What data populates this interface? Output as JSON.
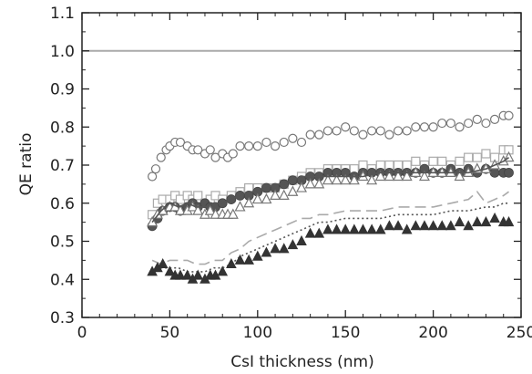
{
  "chart_data": {
    "type": "scatter",
    "xlabel": "CsI thickness (nm)",
    "ylabel": "QE ratio",
    "xlim": [
      0,
      250
    ],
    "ylim": [
      0.3,
      1.1
    ],
    "x_ticks": [
      0,
      50,
      100,
      150,
      200,
      250
    ],
    "y_ticks": [
      0.3,
      0.4,
      0.5,
      0.6,
      0.7,
      0.8,
      0.9,
      1.0,
      1.1
    ],
    "x_tick_labels": [
      "0",
      "50",
      "100",
      "150",
      "200",
      "250"
    ],
    "y_tick_labels": [
      "0.3",
      "0.4",
      "0.5",
      "0.6",
      "0.7",
      "0.8",
      "0.9",
      "1.0",
      "1.1"
    ],
    "reference_line": {
      "y": 1.0,
      "color": "#aaaaaa"
    },
    "grid": false,
    "series": [
      {
        "marker": "open-circle",
        "color": "#777777",
        "x": [
          40,
          42,
          45,
          48,
          50,
          53,
          56,
          60,
          63,
          66,
          70,
          73,
          76,
          80,
          83,
          86,
          90,
          95,
          100,
          105,
          110,
          115,
          120,
          125,
          130,
          135,
          140,
          145,
          150,
          155,
          160,
          165,
          170,
          175,
          180,
          185,
          190,
          195,
          200,
          205,
          210,
          215,
          220,
          225,
          230,
          235,
          240,
          243
        ],
        "y": [
          0.67,
          0.69,
          0.72,
          0.74,
          0.75,
          0.76,
          0.76,
          0.75,
          0.74,
          0.74,
          0.73,
          0.74,
          0.72,
          0.73,
          0.72,
          0.73,
          0.75,
          0.75,
          0.75,
          0.76,
          0.75,
          0.76,
          0.77,
          0.76,
          0.78,
          0.78,
          0.79,
          0.79,
          0.8,
          0.79,
          0.78,
          0.79,
          0.79,
          0.78,
          0.79,
          0.79,
          0.8,
          0.8,
          0.8,
          0.81,
          0.81,
          0.8,
          0.81,
          0.82,
          0.81,
          0.82,
          0.83,
          0.83
        ]
      },
      {
        "marker": "open-square",
        "color": "#aaaaaa",
        "x": [
          40,
          43,
          46,
          50,
          53,
          56,
          60,
          63,
          66,
          70,
          73,
          76,
          80,
          85,
          90,
          95,
          100,
          105,
          110,
          115,
          120,
          125,
          130,
          135,
          140,
          145,
          150,
          155,
          160,
          165,
          170,
          175,
          180,
          185,
          190,
          195,
          200,
          205,
          210,
          215,
          220,
          225,
          230,
          235,
          240,
          243
        ],
        "y": [
          0.57,
          0.6,
          0.61,
          0.61,
          0.62,
          0.61,
          0.62,
          0.61,
          0.62,
          0.6,
          0.61,
          0.62,
          0.61,
          0.62,
          0.63,
          0.64,
          0.64,
          0.64,
          0.64,
          0.65,
          0.66,
          0.67,
          0.68,
          0.68,
          0.69,
          0.69,
          0.69,
          0.69,
          0.7,
          0.69,
          0.7,
          0.7,
          0.7,
          0.7,
          0.71,
          0.7,
          0.71,
          0.71,
          0.7,
          0.71,
          0.72,
          0.72,
          0.73,
          0.72,
          0.74,
          0.74
        ]
      },
      {
        "marker": "filled-circle",
        "color": "#555555",
        "x": [
          40,
          43,
          46,
          50,
          53,
          56,
          60,
          63,
          66,
          70,
          73,
          76,
          80,
          85,
          90,
          95,
          100,
          105,
          110,
          115,
          120,
          125,
          130,
          135,
          140,
          145,
          150,
          155,
          160,
          165,
          170,
          175,
          180,
          185,
          190,
          195,
          200,
          205,
          210,
          215,
          220,
          225,
          230,
          235,
          240,
          243
        ],
        "y": [
          0.54,
          0.56,
          0.58,
          0.59,
          0.59,
          0.58,
          0.59,
          0.6,
          0.59,
          0.6,
          0.59,
          0.59,
          0.6,
          0.61,
          0.62,
          0.62,
          0.63,
          0.64,
          0.64,
          0.65,
          0.66,
          0.66,
          0.67,
          0.67,
          0.68,
          0.68,
          0.68,
          0.67,
          0.68,
          0.68,
          0.68,
          0.68,
          0.68,
          0.68,
          0.68,
          0.69,
          0.68,
          0.68,
          0.69,
          0.68,
          0.69,
          0.68,
          0.69,
          0.68,
          0.68,
          0.68
        ]
      },
      {
        "marker": "open-triangle",
        "color": "#777777",
        "x": [
          40,
          43,
          46,
          50,
          53,
          56,
          60,
          63,
          66,
          70,
          73,
          76,
          80,
          83,
          86,
          90,
          95,
          100,
          105,
          110,
          115,
          120,
          125,
          130,
          135,
          140,
          145,
          150,
          155,
          160,
          165,
          170,
          175,
          180,
          185,
          190,
          195,
          200,
          205,
          210,
          215,
          220,
          225,
          230,
          235,
          240,
          243
        ],
        "y": [
          0.55,
          0.57,
          0.58,
          0.59,
          0.59,
          0.58,
          0.58,
          0.59,
          0.58,
          0.57,
          0.58,
          0.57,
          0.57,
          0.57,
          0.57,
          0.59,
          0.6,
          0.61,
          0.61,
          0.62,
          0.62,
          0.63,
          0.64,
          0.65,
          0.65,
          0.66,
          0.66,
          0.66,
          0.66,
          0.67,
          0.66,
          0.67,
          0.67,
          0.67,
          0.67,
          0.68,
          0.67,
          0.68,
          0.68,
          0.68,
          0.67,
          0.68,
          0.69,
          0.69,
          0.7,
          0.71,
          0.72
        ]
      },
      {
        "marker": "solid-line",
        "color": "#555555",
        "x": [
          40,
          45,
          50,
          55,
          60,
          65,
          70,
          75,
          80,
          85,
          90,
          95,
          100,
          105,
          110,
          115,
          120,
          125,
          130,
          140,
          150,
          160,
          170,
          180,
          190,
          200,
          210,
          220,
          230,
          235,
          240,
          243
        ],
        "y": [
          0.55,
          0.58,
          0.6,
          0.59,
          0.6,
          0.59,
          0.59,
          0.6,
          0.6,
          0.61,
          0.62,
          0.63,
          0.63,
          0.64,
          0.65,
          0.65,
          0.66,
          0.67,
          0.67,
          0.67,
          0.67,
          0.67,
          0.68,
          0.68,
          0.68,
          0.68,
          0.68,
          0.68,
          0.69,
          0.7,
          0.71,
          0.72
        ]
      },
      {
        "marker": "dashed-line",
        "color": "#aaaaaa",
        "x": [
          40,
          45,
          50,
          55,
          60,
          65,
          70,
          75,
          80,
          85,
          90,
          95,
          100,
          105,
          110,
          115,
          120,
          125,
          130,
          135,
          140,
          150,
          160,
          170,
          180,
          190,
          200,
          210,
          220,
          225,
          230,
          235,
          240,
          243
        ],
        "y": [
          0.45,
          0.44,
          0.45,
          0.45,
          0.45,
          0.44,
          0.44,
          0.45,
          0.45,
          0.47,
          0.48,
          0.5,
          0.51,
          0.52,
          0.53,
          0.54,
          0.55,
          0.56,
          0.56,
          0.57,
          0.57,
          0.58,
          0.58,
          0.58,
          0.59,
          0.59,
          0.59,
          0.6,
          0.61,
          0.63,
          0.6,
          0.61,
          0.62,
          0.63
        ]
      },
      {
        "marker": "dotted-line",
        "color": "#555555",
        "x": [
          40,
          45,
          50,
          55,
          60,
          65,
          70,
          75,
          80,
          85,
          90,
          95,
          100,
          105,
          110,
          115,
          120,
          125,
          130,
          135,
          140,
          150,
          160,
          170,
          180,
          190,
          200,
          210,
          220,
          230,
          235,
          240,
          243
        ],
        "y": [
          0.42,
          0.43,
          0.43,
          0.43,
          0.42,
          0.42,
          0.42,
          0.43,
          0.43,
          0.44,
          0.46,
          0.47,
          0.48,
          0.49,
          0.5,
          0.51,
          0.52,
          0.53,
          0.54,
          0.55,
          0.55,
          0.56,
          0.56,
          0.56,
          0.57,
          0.57,
          0.57,
          0.58,
          0.58,
          0.59,
          0.59,
          0.6,
          0.6
        ]
      },
      {
        "marker": "filled-triangle",
        "color": "#333333",
        "x": [
          40,
          43,
          46,
          50,
          53,
          56,
          60,
          63,
          66,
          70,
          73,
          76,
          80,
          85,
          90,
          95,
          100,
          105,
          110,
          115,
          120,
          125,
          130,
          135,
          140,
          145,
          150,
          155,
          160,
          165,
          170,
          175,
          180,
          185,
          190,
          195,
          200,
          205,
          210,
          215,
          220,
          225,
          230,
          235,
          240,
          243
        ],
        "y": [
          0.42,
          0.43,
          0.44,
          0.42,
          0.41,
          0.41,
          0.41,
          0.4,
          0.41,
          0.4,
          0.41,
          0.41,
          0.42,
          0.44,
          0.45,
          0.45,
          0.46,
          0.47,
          0.48,
          0.48,
          0.49,
          0.5,
          0.52,
          0.52,
          0.53,
          0.53,
          0.53,
          0.53,
          0.53,
          0.53,
          0.53,
          0.54,
          0.54,
          0.53,
          0.54,
          0.54,
          0.54,
          0.54,
          0.54,
          0.55,
          0.54,
          0.55,
          0.55,
          0.56,
          0.55,
          0.55
        ]
      }
    ]
  }
}
